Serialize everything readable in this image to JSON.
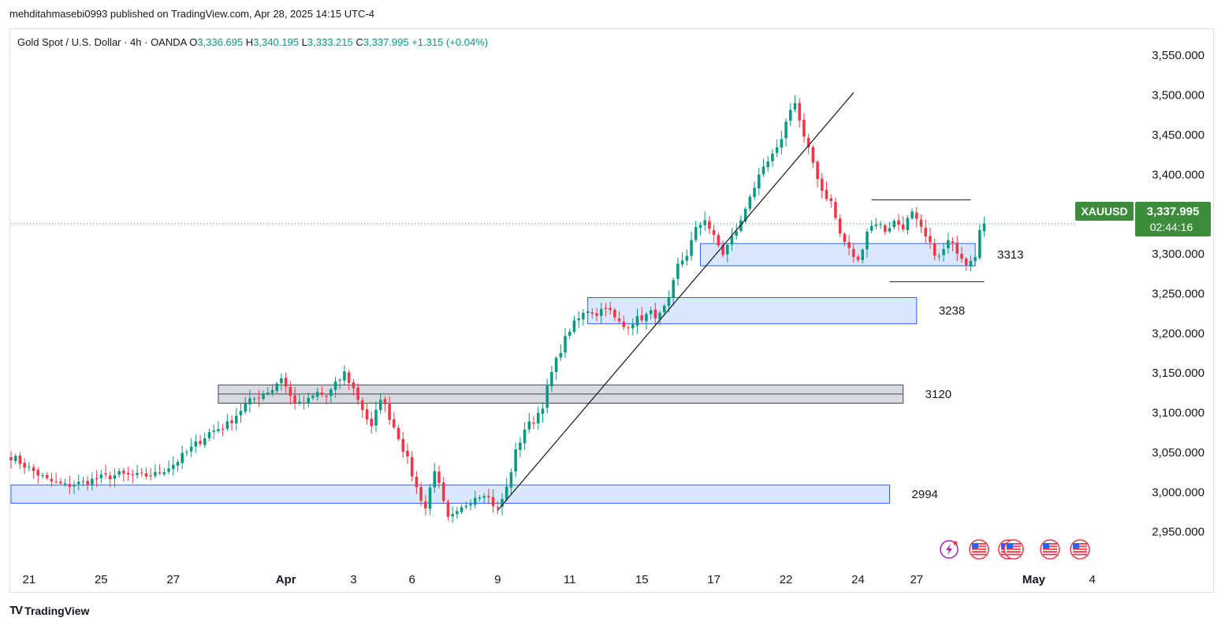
{
  "publisher": {
    "text": "mehditahmasebi0993 published on TradingView.com, Apr 28, 2025 14:15 UTC-4"
  },
  "legend": {
    "symbol": "Gold Spot / U.S. Dollar · 4h · OANDA",
    "open_label": "O",
    "open": "3,336.695",
    "high_label": "H",
    "high": "3,340.195",
    "low_label": "L",
    "low": "3,333.215",
    "close_label": "C",
    "close": "3,337.995",
    "change": "+1.315 (+0.04%)"
  },
  "price_tag": {
    "ticker": "XAUUSD",
    "price": "3,337.995",
    "countdown": "02:44:16"
  },
  "footer": {
    "brand": "TradingView"
  },
  "colors": {
    "up": "#089981",
    "down": "#f23645",
    "zone_blue_fill": "#d6e4fd",
    "zone_blue_stroke": "#2962ff",
    "zone_gray_fill": "#d1d4dc",
    "zone_gray_stroke": "#434651",
    "tag": "#3c8c3c"
  },
  "chart_data": {
    "type": "candlestick",
    "title": "Gold Spot / U.S. Dollar · 4h · OANDA",
    "timeframe": "4h",
    "ylim": [
      2910,
      3580
    ],
    "y_ticks": [
      2950,
      3000,
      3050,
      3100,
      3150,
      3200,
      3250,
      3300,
      3350,
      3400,
      3450,
      3500,
      3550
    ],
    "y_tick_labels": [
      "2,950.000",
      "3,000.000",
      "3,050.000",
      "3,100.000",
      "3,150.000",
      "3,200.000",
      "3,250.000",
      "3,300.000",
      "3,350.000",
      "3,400.000",
      "3,450.000",
      "3,500.000",
      "3,550.000"
    ],
    "x_range": [
      0,
      232
    ],
    "x_ticks": [
      {
        "label": "21",
        "x": 4
      },
      {
        "label": "25",
        "x": 20
      },
      {
        "label": "27",
        "x": 36
      },
      {
        "label": "Apr",
        "x": 61
      },
      {
        "label": "3",
        "x": 76
      },
      {
        "label": "6",
        "x": 89
      },
      {
        "label": "9",
        "x": 108
      },
      {
        "label": "11",
        "x": 124
      },
      {
        "label": "15",
        "x": 140
      },
      {
        "label": "17",
        "x": 156
      },
      {
        "label": "22",
        "x": 172
      },
      {
        "label": "24",
        "x": 188
      },
      {
        "label": "27",
        "x": 201
      },
      {
        "label": "May",
        "x": 227
      },
      {
        "label": "4",
        "x": 240
      }
    ],
    "last_price": 3337.995,
    "anchors": [
      [
        0,
        3045
      ],
      [
        4,
        3030
      ],
      [
        8,
        3015
      ],
      [
        12,
        3008
      ],
      [
        16,
        3012
      ],
      [
        20,
        3018
      ],
      [
        24,
        3022
      ],
      [
        28,
        3020
      ],
      [
        32,
        3022
      ],
      [
        36,
        3035
      ],
      [
        40,
        3055
      ],
      [
        44,
        3075
      ],
      [
        48,
        3085
      ],
      [
        52,
        3110
      ],
      [
        56,
        3125
      ],
      [
        58,
        3130
      ],
      [
        60,
        3145
      ],
      [
        62,
        3120
      ],
      [
        64,
        3110
      ],
      [
        66,
        3115
      ],
      [
        68,
        3125
      ],
      [
        70,
        3120
      ],
      [
        72,
        3135
      ],
      [
        74,
        3150
      ],
      [
        76,
        3130
      ],
      [
        78,
        3105
      ],
      [
        80,
        3080
      ],
      [
        82,
        3120
      ],
      [
        84,
        3095
      ],
      [
        86,
        3070
      ],
      [
        88,
        3040
      ],
      [
        90,
        3005
      ],
      [
        92,
        2980
      ],
      [
        94,
        3030
      ],
      [
        96,
        2985
      ],
      [
        97,
        2965
      ],
      [
        99,
        2972
      ],
      [
        101,
        2985
      ],
      [
        103,
        2995
      ],
      [
        105,
        3000
      ],
      [
        107,
        2985
      ],
      [
        108,
        2978
      ],
      [
        110,
        3005
      ],
      [
        112,
        3050
      ],
      [
        114,
        3080
      ],
      [
        116,
        3090
      ],
      [
        118,
        3110
      ],
      [
        120,
        3150
      ],
      [
        122,
        3180
      ],
      [
        124,
        3205
      ],
      [
        126,
        3218
      ],
      [
        128,
        3230
      ],
      [
        130,
        3225
      ],
      [
        132,
        3235
      ],
      [
        134,
        3218
      ],
      [
        136,
        3208
      ],
      [
        138,
        3215
      ],
      [
        140,
        3220
      ],
      [
        142,
        3225
      ],
      [
        144,
        3222
      ],
      [
        146,
        3240
      ],
      [
        148,
        3285
      ],
      [
        150,
        3300
      ],
      [
        152,
        3330
      ],
      [
        154,
        3345
      ],
      [
        156,
        3320
      ],
      [
        158,
        3300
      ],
      [
        160,
        3320
      ],
      [
        162,
        3340
      ],
      [
        164,
        3375
      ],
      [
        166,
        3395
      ],
      [
        168,
        3415
      ],
      [
        170,
        3430
      ],
      [
        172,
        3465
      ],
      [
        173,
        3485
      ],
      [
        174,
        3490
      ],
      [
        176,
        3445
      ],
      [
        178,
        3415
      ],
      [
        180,
        3380
      ],
      [
        182,
        3365
      ],
      [
        184,
        3325
      ],
      [
        186,
        3305
      ],
      [
        188,
        3290
      ],
      [
        190,
        3330
      ],
      [
        192,
        3340
      ],
      [
        194,
        3330
      ],
      [
        196,
        3340
      ],
      [
        198,
        3335
      ],
      [
        200,
        3350
      ],
      [
        202,
        3330
      ],
      [
        204,
        3310
      ],
      [
        206,
        3295
      ],
      [
        208,
        3315
      ],
      [
        210,
        3305
      ],
      [
        212,
        3290
      ],
      [
        214,
        3300
      ],
      [
        215,
        3335
      ],
      [
        216,
        3338
      ]
    ],
    "zones": [
      {
        "label": "3313",
        "low": 3285,
        "high": 3313,
        "x_start": 153,
        "x_end": 214,
        "style": "blue"
      },
      {
        "label": "3238",
        "low": 3212,
        "high": 3245,
        "x_start": 128,
        "x_end": 201,
        "style": "blue"
      },
      {
        "label": "3120",
        "low": 3112,
        "high": 3135,
        "x_start": 46,
        "x_end": 198,
        "style": "gray"
      },
      {
        "label": "2994",
        "low": 2986,
        "high": 3009,
        "x_start": 0,
        "x_end": 195,
        "style": "blue"
      }
    ],
    "trendline": {
      "from": [
        108,
        2977
      ],
      "to": [
        187,
        3503
      ]
    },
    "horizontal_lines": [
      {
        "y": 3368,
        "x_start": 191,
        "x_end": 213
      },
      {
        "y": 3265,
        "x_start": 195,
        "x_end": 216
      }
    ],
    "events": [
      "lightning",
      "us-flag",
      "us-flag",
      "us-flag",
      "us-flag",
      "us-flag"
    ]
  }
}
